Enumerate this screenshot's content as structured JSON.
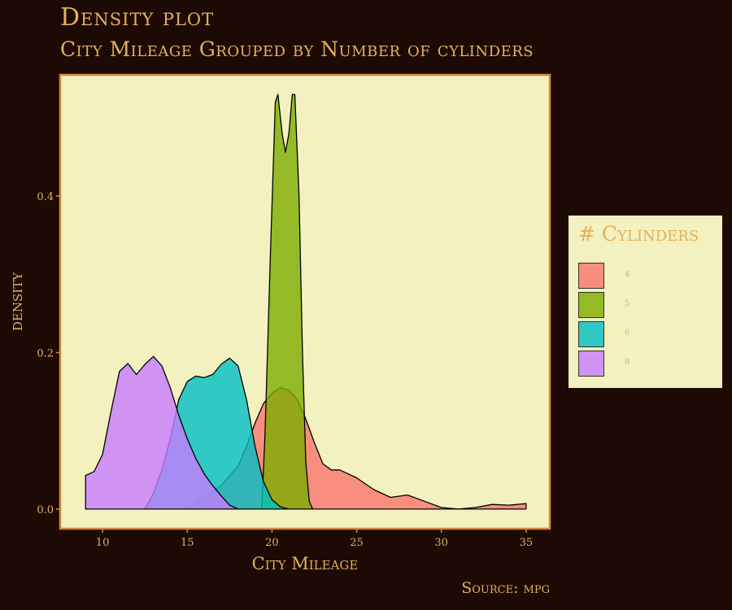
{
  "title": "Density plot",
  "subtitle": "City Mileage Grouped by Number of cylinders",
  "caption": "Source: mpg",
  "colors": {
    "background": "#1e0a04",
    "panel": "#f3f1c0",
    "panel_border": "#d18a3c",
    "text": "#e3b25c"
  },
  "legend": {
    "title": "# Cylinders",
    "items": [
      {
        "label": "4",
        "color": "#f8766d"
      },
      {
        "label": "5",
        "color": "#7cae00"
      },
      {
        "label": "6",
        "color": "#00bfc4"
      },
      {
        "label": "8",
        "color": "#c77cff"
      }
    ]
  },
  "chart_data": {
    "type": "area",
    "title": "Density plot",
    "subtitle": "City Mileage Grouped by Number of cylinders",
    "xlabel": "City Mileage",
    "ylabel": "density",
    "xlim": [
      7.5,
      36.4
    ],
    "ylim": [
      -0.025,
      0.555
    ],
    "x_ticks": [
      10,
      15,
      20,
      25,
      30,
      35
    ],
    "y_ticks": [
      0.0,
      0.2,
      0.4
    ],
    "y_tick_labels": [
      "0.0",
      "0.2",
      "0.4"
    ],
    "fill_alpha": 0.8,
    "grid": false,
    "legend_position": "right",
    "series": [
      {
        "name": "4",
        "color": "#f8766d",
        "points": [
          [
            15,
            0.0
          ],
          [
            16,
            0.015
          ],
          [
            17,
            0.03
          ],
          [
            18,
            0.055
          ],
          [
            18.5,
            0.08
          ],
          [
            19,
            0.11
          ],
          [
            19.5,
            0.135
          ],
          [
            20,
            0.148
          ],
          [
            20.5,
            0.155
          ],
          [
            21,
            0.152
          ],
          [
            21.5,
            0.14
          ],
          [
            22,
            0.115
          ],
          [
            22.5,
            0.085
          ],
          [
            23,
            0.058
          ],
          [
            23.5,
            0.05
          ],
          [
            24,
            0.05
          ],
          [
            25,
            0.04
          ],
          [
            26,
            0.025
          ],
          [
            27,
            0.015
          ],
          [
            28,
            0.018
          ],
          [
            29,
            0.01
          ],
          [
            30,
            0.002
          ],
          [
            31,
            0.0
          ],
          [
            32,
            0.002
          ],
          [
            33,
            0.006
          ],
          [
            34,
            0.005
          ],
          [
            35,
            0.007
          ]
        ]
      },
      {
        "name": "5",
        "color": "#7cae00",
        "points": [
          [
            19.4,
            0.0
          ],
          [
            19.6,
            0.1
          ],
          [
            19.9,
            0.32
          ],
          [
            20.2,
            0.52
          ],
          [
            20.35,
            0.53
          ],
          [
            20.6,
            0.48
          ],
          [
            20.8,
            0.456
          ],
          [
            21.0,
            0.48
          ],
          [
            21.2,
            0.53
          ],
          [
            21.35,
            0.53
          ],
          [
            21.6,
            0.4
          ],
          [
            21.8,
            0.2
          ],
          [
            22.0,
            0.06
          ],
          [
            22.2,
            0.01
          ],
          [
            22.4,
            0.0
          ]
        ]
      },
      {
        "name": "6",
        "color": "#00bfc4",
        "points": [
          [
            12.5,
            0.0
          ],
          [
            13,
            0.02
          ],
          [
            13.5,
            0.05
          ],
          [
            14,
            0.09
          ],
          [
            14.5,
            0.14
          ],
          [
            15,
            0.163
          ],
          [
            15.5,
            0.17
          ],
          [
            16,
            0.168
          ],
          [
            16.5,
            0.172
          ],
          [
            17,
            0.185
          ],
          [
            17.5,
            0.193
          ],
          [
            18,
            0.183
          ],
          [
            18.5,
            0.14
          ],
          [
            19,
            0.08
          ],
          [
            19.5,
            0.035
          ],
          [
            20,
            0.012
          ],
          [
            20.5,
            0.003
          ],
          [
            21,
            0.0
          ]
        ]
      },
      {
        "name": "8",
        "color": "#c77cff",
        "points": [
          [
            9,
            0.043
          ],
          [
            9.5,
            0.048
          ],
          [
            10,
            0.07
          ],
          [
            10.5,
            0.125
          ],
          [
            11,
            0.176
          ],
          [
            11.5,
            0.186
          ],
          [
            12,
            0.172
          ],
          [
            12.5,
            0.185
          ],
          [
            13,
            0.195
          ],
          [
            13.5,
            0.183
          ],
          [
            14,
            0.155
          ],
          [
            14.5,
            0.12
          ],
          [
            15,
            0.09
          ],
          [
            15.5,
            0.065
          ],
          [
            16,
            0.045
          ],
          [
            16.5,
            0.03
          ],
          [
            17,
            0.017
          ],
          [
            17.5,
            0.005
          ],
          [
            18,
            0.0
          ]
        ]
      }
    ]
  }
}
